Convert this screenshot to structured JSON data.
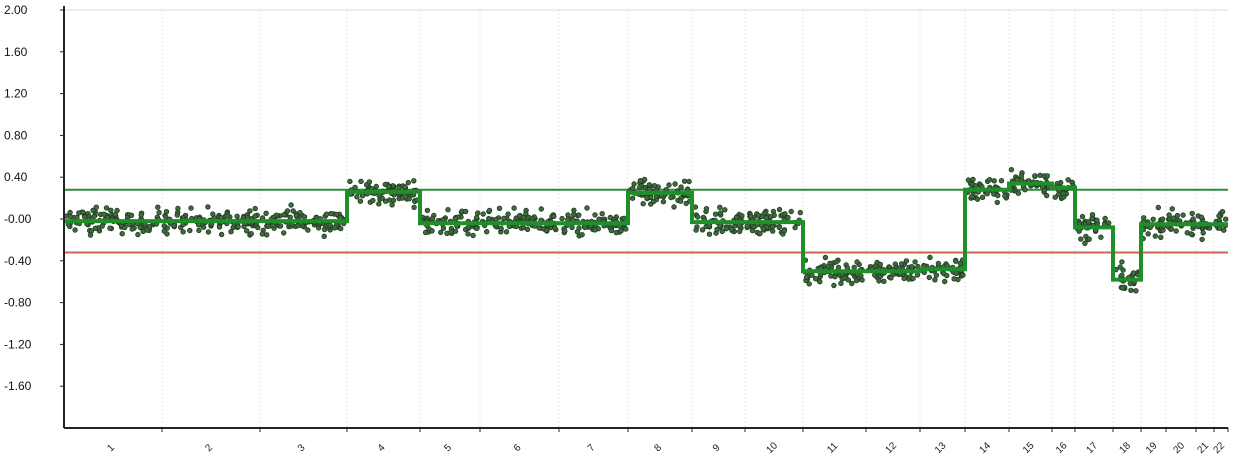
{
  "chart_data": {
    "type": "scatter",
    "title": "",
    "xlabel": "",
    "ylabel": "",
    "ylim": [
      -2.0,
      2.0
    ],
    "y_ticks": [
      "2.00",
      "1.60",
      "1.20",
      "0.80",
      "0.40",
      "-0.00",
      "-0.40",
      "-0.80",
      "-1.20",
      "-1.60"
    ],
    "y_tick_values": [
      2.0,
      1.6,
      1.2,
      0.8,
      0.4,
      0.0,
      -0.4,
      -0.8,
      -1.2,
      -1.6
    ],
    "x_categories": [
      "1",
      "2",
      "3",
      "4",
      "5",
      "6",
      "7",
      "8",
      "9",
      "10",
      "11",
      "12",
      "13",
      "14",
      "15",
      "16",
      "17",
      "18",
      "19",
      "20",
      "21",
      "22"
    ],
    "grid": "vertical-dotted",
    "thresholds": [
      {
        "name": "gain",
        "value": 0.28,
        "color": "#2e8b3a"
      },
      {
        "name": "loss",
        "value": -0.32,
        "color": "#c86450"
      }
    ],
    "segments": [
      {
        "chromosome": "1",
        "mean": -0.02
      },
      {
        "chromosome": "2",
        "mean": -0.02
      },
      {
        "chromosome": "3",
        "mean": -0.02
      },
      {
        "chromosome": "4",
        "mean": 0.26
      },
      {
        "chromosome": "5",
        "mean": -0.04
      },
      {
        "chromosome": "6",
        "mean": -0.04
      },
      {
        "chromosome": "7",
        "mean": -0.04
      },
      {
        "chromosome": "8",
        "mean": 0.25
      },
      {
        "chromosome": "9",
        "mean": -0.03
      },
      {
        "chromosome": "10",
        "mean": -0.03
      },
      {
        "chromosome": "11",
        "mean": -0.5
      },
      {
        "chromosome": "12",
        "mean": -0.5
      },
      {
        "chromosome": "13",
        "mean": -0.48
      },
      {
        "chromosome": "14",
        "mean": 0.28
      },
      {
        "chromosome": "15",
        "mean": 0.34
      },
      {
        "chromosome": "16",
        "mean": 0.3
      },
      {
        "chromosome": "17",
        "mean": -0.08
      },
      {
        "chromosome": "18",
        "mean": -0.58
      },
      {
        "chromosome": "19",
        "mean": -0.05
      },
      {
        "chromosome": "20",
        "mean": -0.05
      },
      {
        "chromosome": "21",
        "mean": -0.05
      },
      {
        "chromosome": "22",
        "mean": -0.05
      }
    ],
    "series_colors": {
      "points": "#1d3b1d",
      "segment": "#1f8f2a",
      "axis": "#222222",
      "grid": "#d0d0d0"
    }
  }
}
